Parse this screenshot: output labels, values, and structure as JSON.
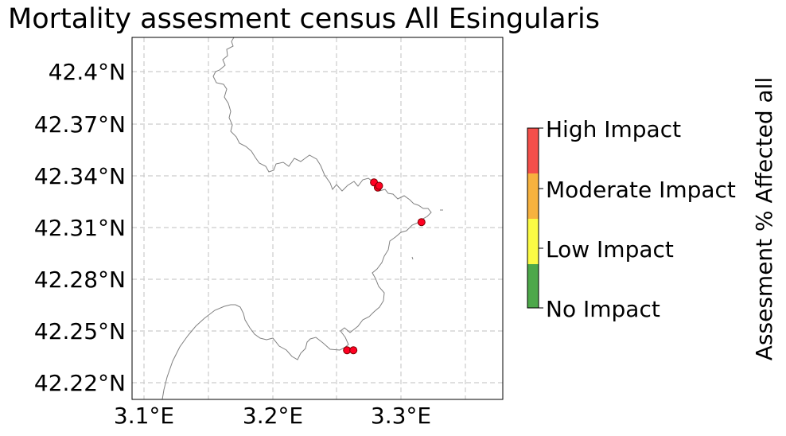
{
  "title": "Mortality assesment census All Esingularis",
  "axes": {
    "y_ticks": [
      "42.4°N",
      "42.37°N",
      "42.34°N",
      "42.31°N",
      "42.28°N",
      "42.25°N",
      "42.22°N"
    ],
    "x_ticks": [
      "3.1°E",
      "3.2°E",
      "3.3°E"
    ]
  },
  "colorbar": {
    "title": "Assesment % Affected all",
    "categories": [
      {
        "label": "High Impact",
        "color": "#f44f4a"
      },
      {
        "label": "Moderate Impact",
        "color": "#f7b23e"
      },
      {
        "label": "Low Impact",
        "color": "#fbfb44"
      },
      {
        "label": "No Impact",
        "color": "#4da84a"
      }
    ]
  },
  "markers": [
    {
      "lon": 3.279,
      "lat": 42.336,
      "category": "High Impact"
    },
    {
      "lon": 3.282,
      "lat": 42.333,
      "category": "High Impact"
    },
    {
      "lon": 3.283,
      "lat": 42.334,
      "category": "High Impact"
    },
    {
      "lon": 3.316,
      "lat": 42.313,
      "category": "High Impact"
    },
    {
      "lon": 3.258,
      "lat": 42.239,
      "category": "High Impact"
    },
    {
      "lon": 3.263,
      "lat": 42.239,
      "category": "High Impact"
    }
  ],
  "colors": {
    "marker_fill": "#ff0022",
    "marker_edge": "#7a0000",
    "coastline": "#808080",
    "grid": "#cccccc"
  }
}
